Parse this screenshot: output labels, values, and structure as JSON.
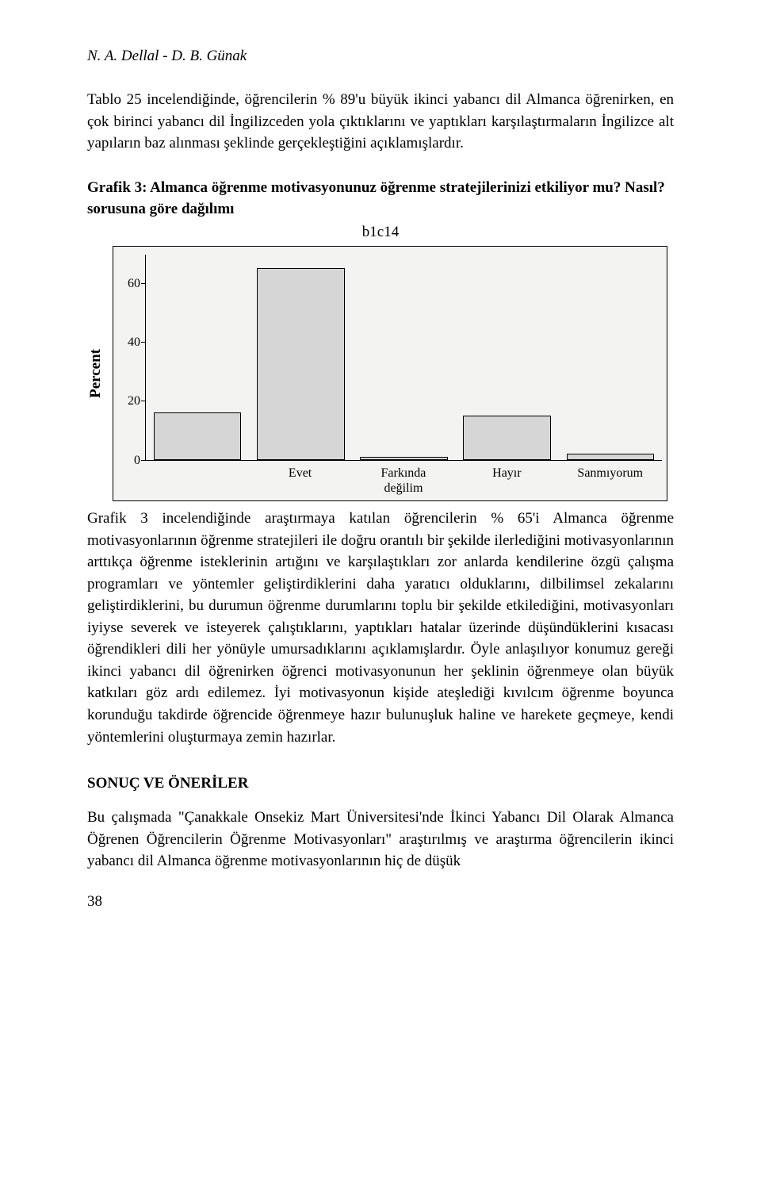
{
  "header": {
    "text": "N. A. Dellal - D. B. Günak"
  },
  "para1": "Tablo 25 incelendiğinde, öğrencilerin % 89'u büyük ikinci yabancı dil Almanca öğrenirken, en çok birinci yabancı dil İngilizceden yola çıktıklarını ve yaptıkları karşılaştırmaların İngilizce alt yapıların baz alınması şeklinde gerçekleştiğini açıklamışlardır.",
  "chart": {
    "title": "Grafik 3: Almanca öğrenme motivasyonunuz öğrenme stratejilerinizi etkiliyor mu? Nasıl? sorusuna göre dağılımı",
    "subtitle": "b1c14",
    "ylabel": "Percent",
    "type": "bar",
    "ylim": [
      0,
      70
    ],
    "yticks": [
      0,
      20,
      40,
      60
    ],
    "categories": [
      "",
      "Evet",
      "Farkında değilim",
      "Hayır",
      "Sanmıyorum"
    ],
    "values": [
      16,
      65,
      1,
      15,
      2
    ],
    "bar_fill": "#d6d6d6",
    "bar_border": "#000000",
    "plot_bg": "#f3f3f1",
    "outer_border": "#000000",
    "bar_width_pct": 17,
    "tick_fontsize": 16
  },
  "para2": "Grafik 3 incelendiğinde araştırmaya katılan öğrencilerin % 65'i Almanca öğrenme motivasyonlarının öğrenme stratejileri ile doğru orantılı bir şekilde ilerlediğini motivasyonlarının arttıkça öğrenme isteklerinin artığını ve karşılaştıkları zor anlarda kendilerine özgü çalışma programları ve yöntemler geliştirdiklerini daha yaratıcı olduklarını, dilbilimsel zekalarını geliştirdiklerini, bu durumun öğrenme durumlarını toplu bir şekilde etkilediğini, motivasyonları iyiyse severek ve isteyerek çalıştıklarını, yaptıkları hatalar üzerinde düşündüklerini kısacası öğrendikleri dili her yönüyle umursadıklarını açıklamışlardır. Öyle anlaşılıyor konumuz gereği ikinci yabancı dil öğrenirken öğrenci motivasyonunun her şeklinin öğrenmeye olan büyük katkıları göz ardı edilemez. İyi motivasyonun kişide ateşlediği kıvılcım öğrenme boyunca korunduğu takdirde öğrencide öğrenmeye hazır bulunuşluk haline ve harekete geçmeye, kendi yöntemlerini oluşturmaya zemin hazırlar.",
  "section_heading": "SONUÇ VE ÖNERİLER",
  "para3": "Bu çalışmada \"Çanakkale Onsekiz Mart Üniversitesi'nde İkinci Yabancı Dil Olarak Almanca Öğrenen Öğrencilerin Öğrenme Motivasyonları\" araştırılmış ve araştırma öğrencilerin ikinci yabancı dil Almanca öğrenme motivasyonlarının hiç de düşük",
  "page_number": "38"
}
